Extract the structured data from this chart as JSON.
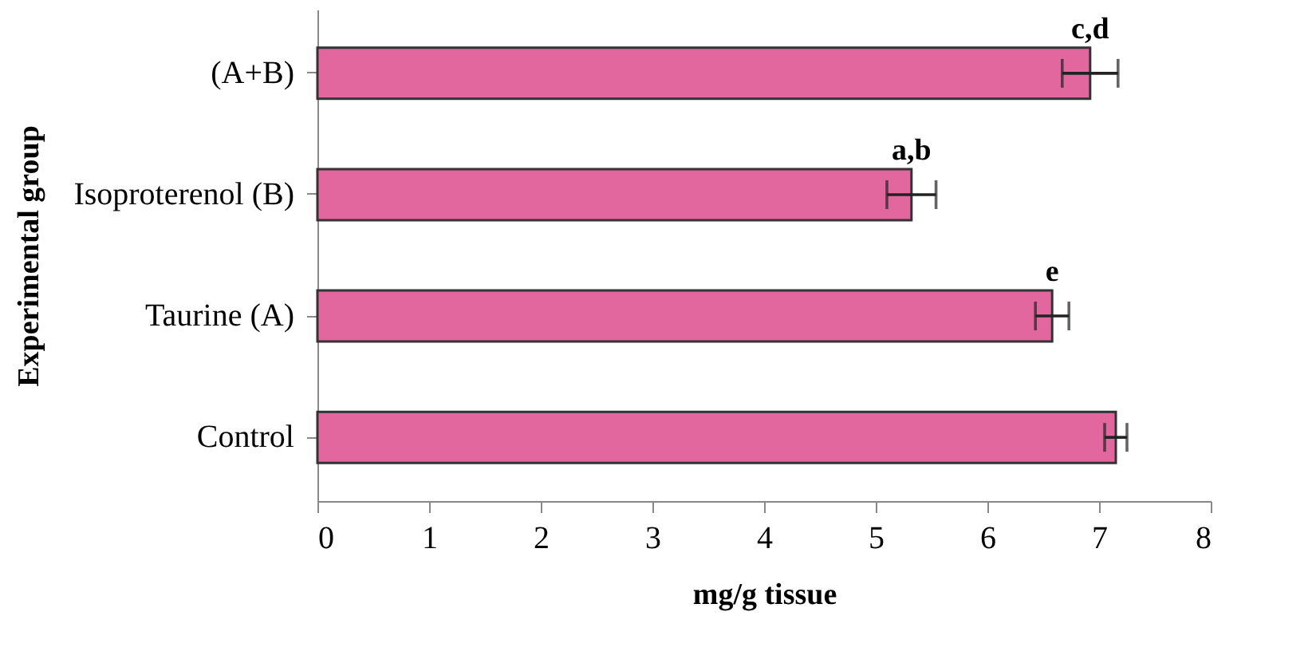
{
  "chart_data": {
    "type": "bar",
    "orientation": "horizontal",
    "xlabel": "mg/g tissue",
    "ylabel": "Experimental group",
    "categories": [
      "(A+B)",
      "Isoproterenol (B)",
      "Taurine (A)",
      "Control"
    ],
    "values": [
      6.92,
      5.32,
      6.58,
      7.15
    ],
    "errors": [
      0.25,
      0.22,
      0.15,
      0.1
    ],
    "color": "#e2679f",
    "xlim": [
      0,
      8
    ],
    "xticks": [
      0,
      1,
      2,
      3,
      4,
      5,
      6,
      7,
      8
    ],
    "grid": false,
    "annotations": [
      {
        "text": "c,d",
        "x": 6.92,
        "y": "(A+B)"
      },
      {
        "text": "a,b",
        "x": 5.32,
        "y": "Isoproterenol (B)"
      },
      {
        "text": "e",
        "x": 6.58,
        "y": "Taurine (A)"
      }
    ]
  }
}
